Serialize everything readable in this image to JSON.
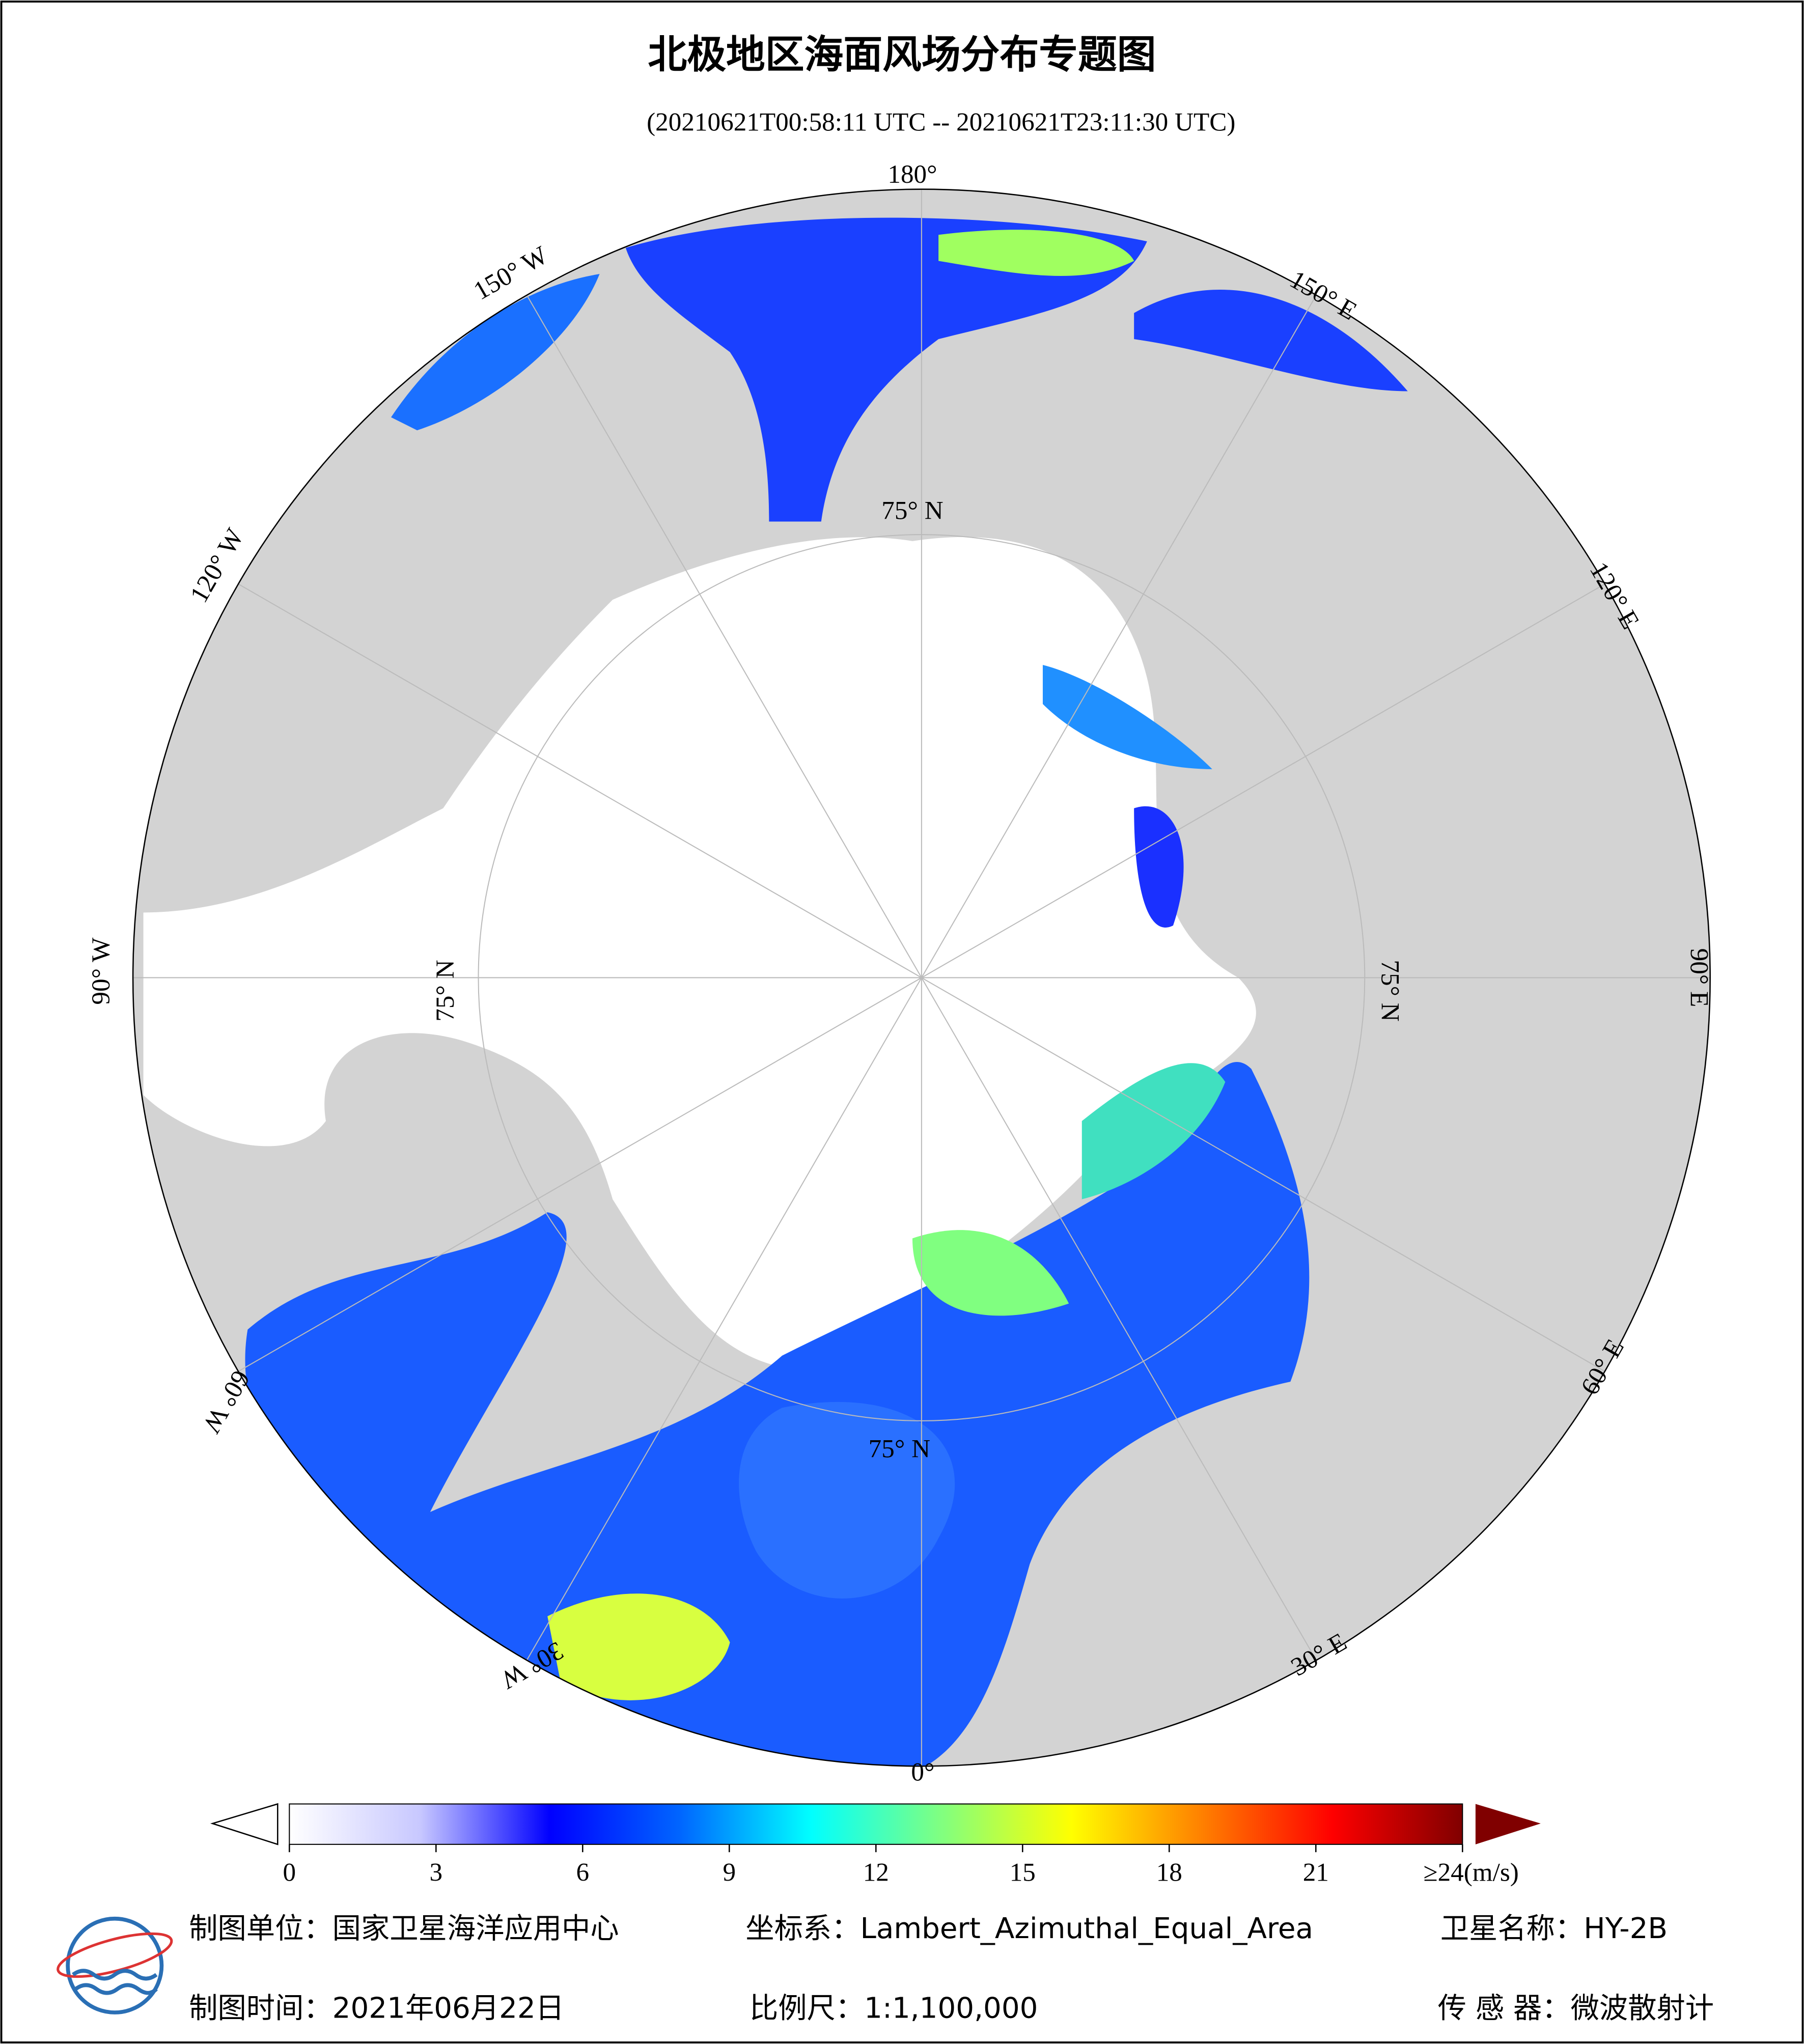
{
  "header": {
    "title": "北极地区海面风场分布专题图",
    "subtitle": "(20210621T00:58:11 UTC -- 20210621T23:11:30 UTC)"
  },
  "map": {
    "longitude_labels": [
      "180°",
      "150° W",
      "120° W",
      "90° W",
      "60° W",
      "30° W",
      "0°",
      "30° E",
      "60° E",
      "90° E",
      "120° E",
      "150° E"
    ],
    "latitude_labels": [
      "75° N",
      "75° N",
      "75° N",
      "75° N"
    ]
  },
  "colorbar": {
    "range": [
      0,
      24
    ],
    "ticks": [
      0,
      3,
      6,
      9,
      12,
      15,
      18,
      21,
      {
        "value": 24,
        "label": "≥24(m/s)"
      }
    ],
    "colors": [
      "#ffffff",
      "#c8c8ff",
      "#0000ff",
      "#0066ff",
      "#00ffff",
      "#80ff80",
      "#ffff00",
      "#ff8000",
      "#ff0000",
      "#800000"
    ]
  },
  "footer": {
    "unit": "制图单位：国家卫星海洋应用中心",
    "projection": "坐标系：Lambert_Azimuthal_Equal_Area",
    "satellite": "卫星名称：HY-2B",
    "date": "制图时间：2021年06月22日",
    "scale": "比例尺：1:1,100,000",
    "sensor": "传 感 器：微波散射计"
  }
}
